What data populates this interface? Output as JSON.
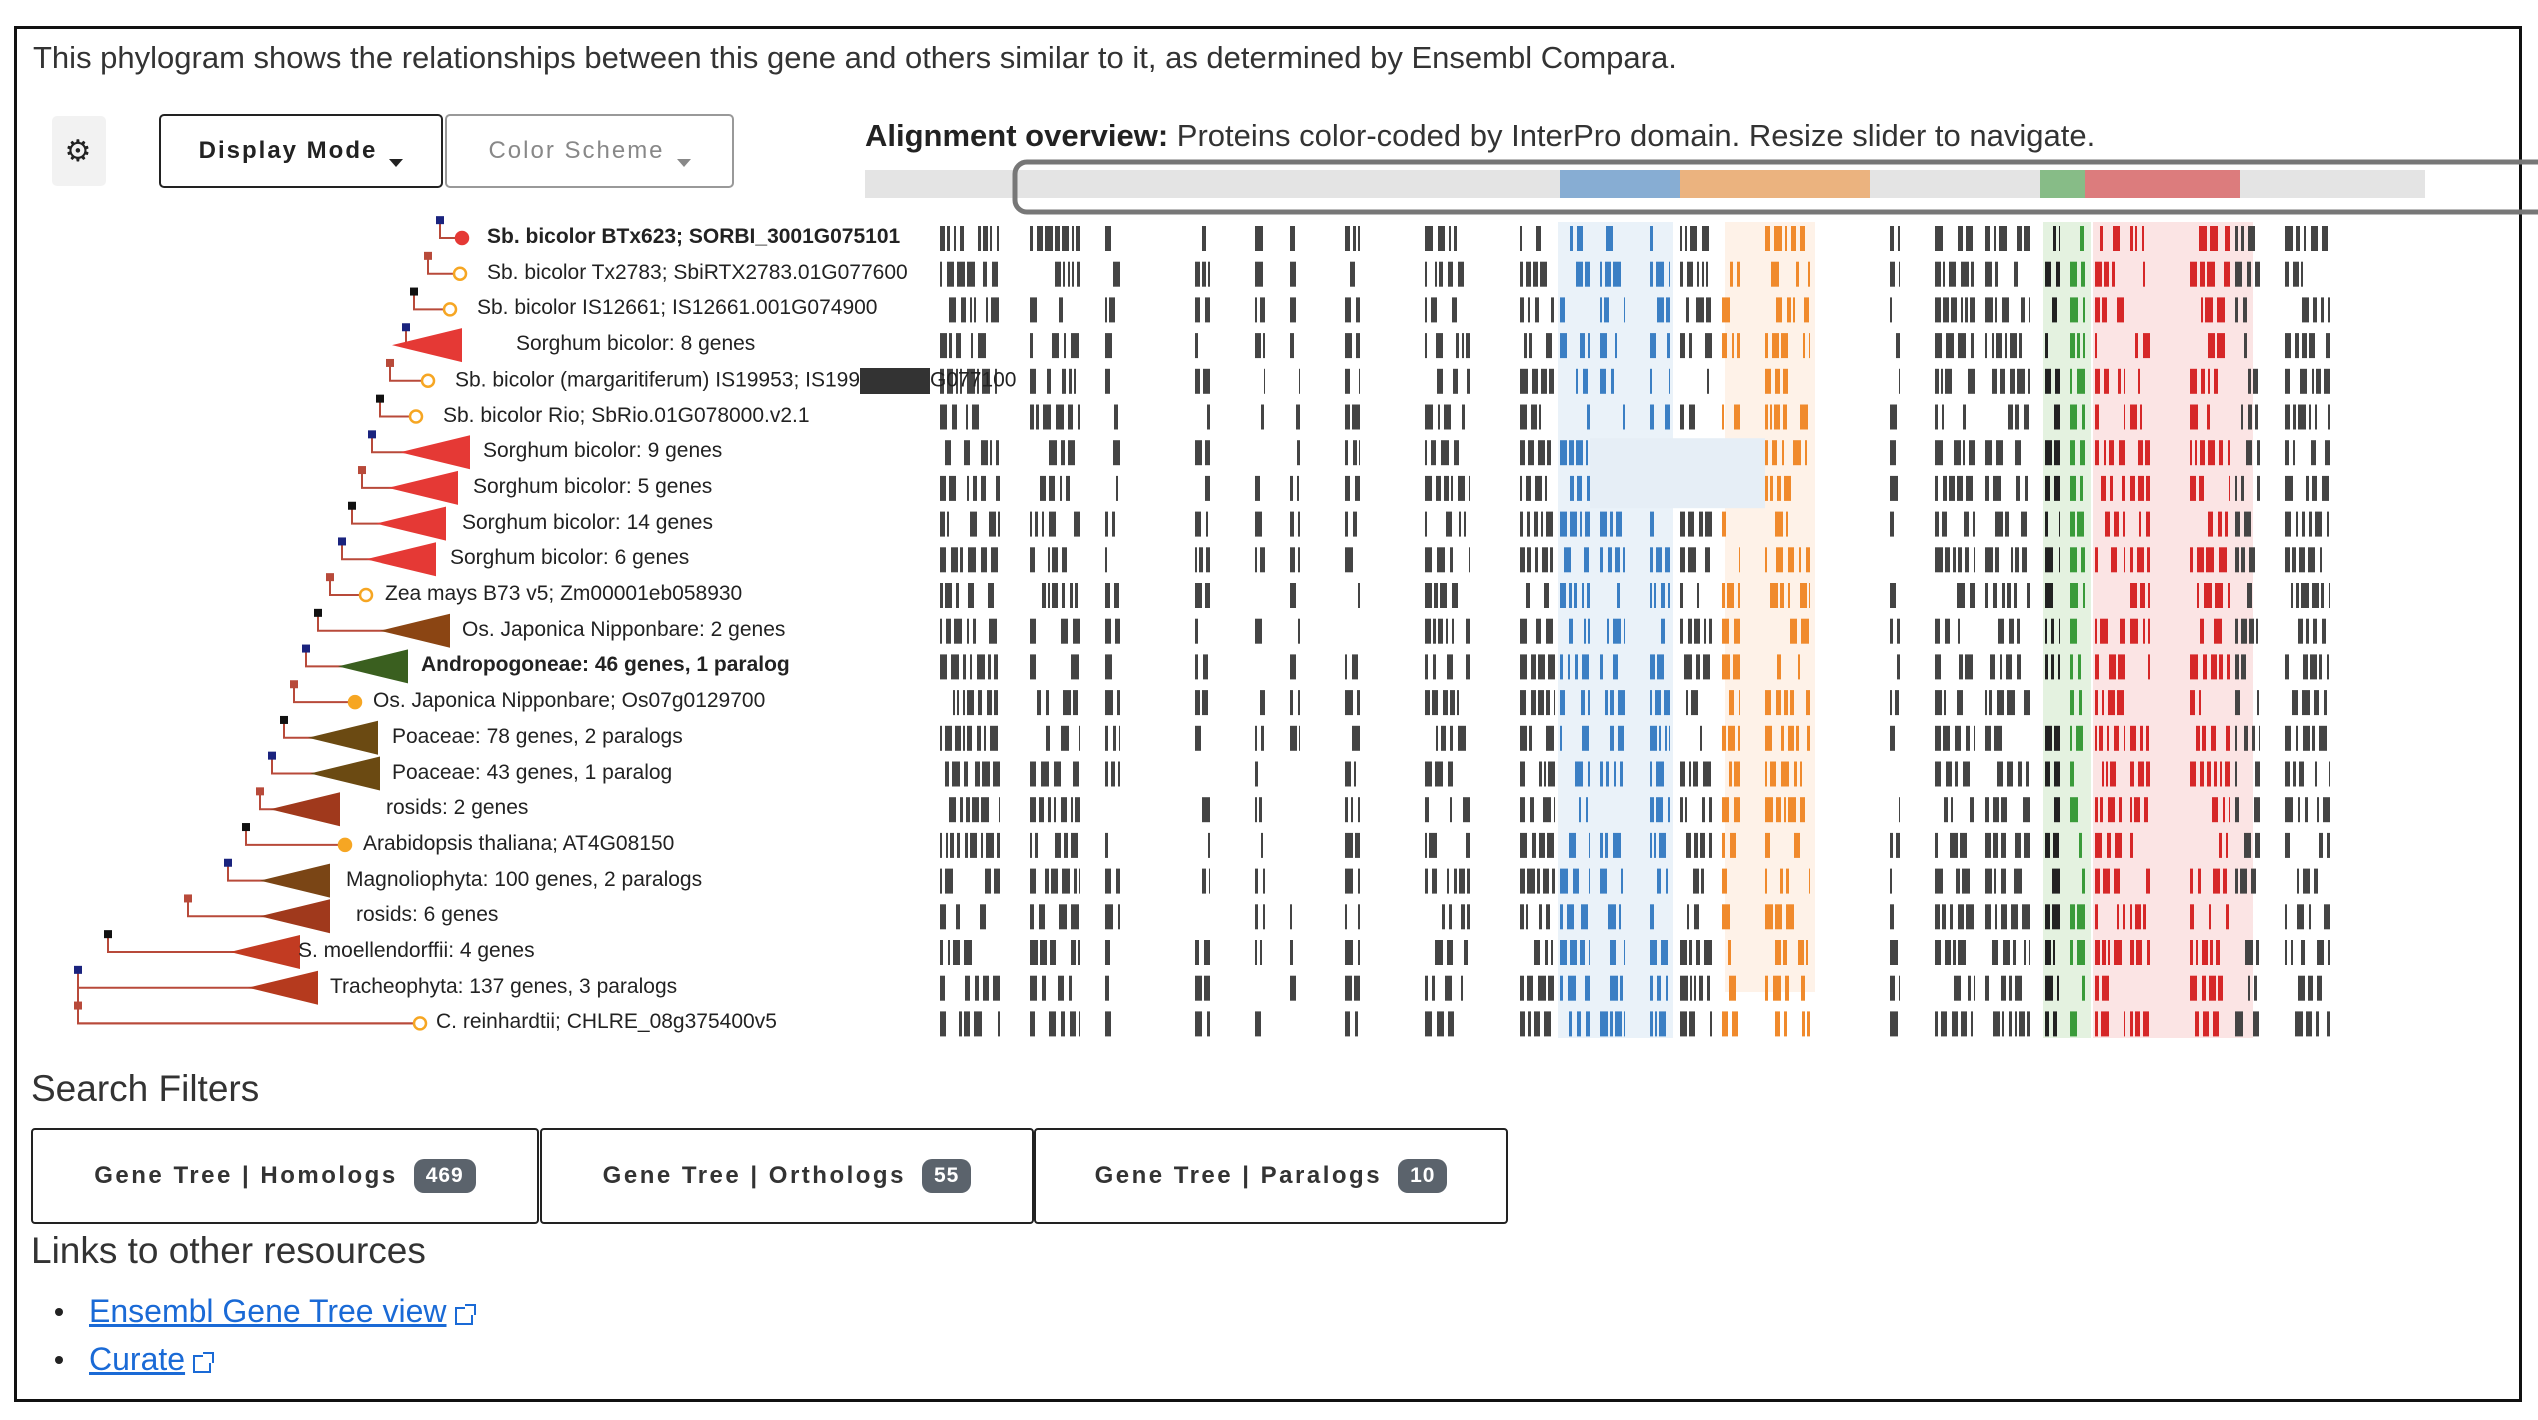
{
  "intro": "This phylogram shows the relationships between this gene and others similar to it, as determined by Ensembl Compara.",
  "toolbar": {
    "settings_icon": "gear-icon",
    "display_mode_label": "Display Mode",
    "color_scheme_label": "Color Scheme"
  },
  "alignment": {
    "title_bold": "Alignment overview:",
    "title_rest": " Proteins color-coded by InterPro domain. Resize slider to navigate."
  },
  "tree": {
    "leaves": [
      {
        "label": "Sb. bicolor BTx623; SORBI_3001G075101",
        "kind": "gene",
        "color": "#e53935",
        "bold": true
      },
      {
        "label": "Sb. bicolor Tx2783; SbiRTX2783.01G077600",
        "kind": "gene",
        "color": "#f6a623"
      },
      {
        "label": "Sb. bicolor IS12661; IS12661.001G074900",
        "kind": "gene",
        "color": "#f6a623"
      },
      {
        "label": "Sorghum bicolor: 8 genes",
        "kind": "clade",
        "color": "#e53935"
      },
      {
        "label": "Sb. bicolor (margaritiferum) IS19953; IS199",
        "label_tail": "G077100",
        "redacted": true,
        "kind": "gene",
        "color": "#f6a623"
      },
      {
        "label": "Sb. bicolor Rio; SbRio.01G078000.v2.1",
        "kind": "gene",
        "color": "#f6a623"
      },
      {
        "label": "Sorghum bicolor: 9 genes",
        "kind": "clade",
        "color": "#e53935"
      },
      {
        "label": "Sorghum bicolor: 5 genes",
        "kind": "clade",
        "color": "#e53935"
      },
      {
        "label": "Sorghum bicolor: 14 genes",
        "kind": "clade",
        "color": "#e53935"
      },
      {
        "label": "Sorghum bicolor: 6 genes",
        "kind": "clade",
        "color": "#e53935"
      },
      {
        "label": "Zea mays B73 v5; Zm00001eb058930",
        "kind": "gene",
        "color": "#f6a623"
      },
      {
        "label": "Os. Japonica Nipponbare: 2 genes",
        "kind": "clade",
        "color": "#8b4513"
      },
      {
        "label": "Andropogoneae: 46 genes, 1 paralog",
        "kind": "clade",
        "color": "#3a5f1f",
        "bold": true
      },
      {
        "label": "Os. Japonica Nipponbare; Os07g0129700",
        "kind": "gene",
        "color": "#f6a623",
        "filled": true
      },
      {
        "label": "Poaceae: 78 genes, 2 paralogs",
        "kind": "clade",
        "color": "#6b4a12"
      },
      {
        "label": "Poaceae: 43 genes, 1 paralog",
        "kind": "clade",
        "color": "#6b4a12"
      },
      {
        "label": "rosids: 2 genes",
        "kind": "clade",
        "color": "#a0391c"
      },
      {
        "label": "Arabidopsis thaliana; AT4G08150",
        "kind": "gene",
        "color": "#f6a623",
        "filled": true
      },
      {
        "label": "Magnoliophyta: 100 genes, 2 paralogs",
        "kind": "clade",
        "color": "#7a4515"
      },
      {
        "label": "rosids: 6 genes",
        "kind": "clade",
        "color": "#a0391c"
      },
      {
        "label": "S. moellendorffii: 4 genes",
        "kind": "clade",
        "color": "#c23b22"
      },
      {
        "label": "Tracheophyta: 137 genes, 3 paralogs",
        "kind": "clade",
        "color": "#b53a1e"
      },
      {
        "label": "C. reinhardtii; CHLRE_08g375400v5",
        "kind": "gene",
        "color": "#f6a623"
      }
    ],
    "domain_colors": {
      "blue": "#3b7fc4",
      "orange": "#f08a2c",
      "green": "#3a9b3a",
      "red": "#d62728",
      "gray": "#444444"
    }
  },
  "filters": {
    "title": "Search Filters",
    "buttons": [
      {
        "label": "Gene Tree | Homologs",
        "count": "469"
      },
      {
        "label": "Gene Tree | Orthologs",
        "count": "55"
      },
      {
        "label": "Gene Tree | Paralogs",
        "count": "10"
      }
    ]
  },
  "links": {
    "title": "Links to other resources",
    "items": [
      {
        "label": "Ensembl Gene Tree view"
      },
      {
        "label": "Curate"
      }
    ]
  }
}
